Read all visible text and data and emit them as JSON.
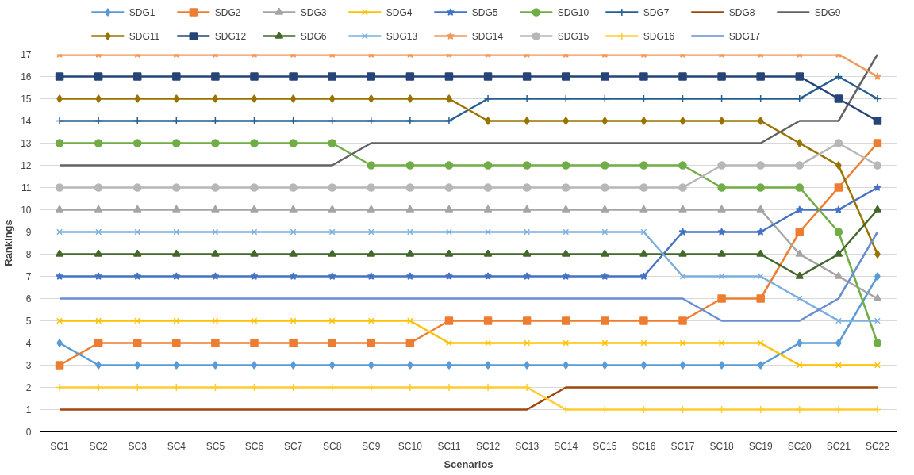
{
  "chart_data": {
    "type": "line",
    "xlabel": "Scenarios",
    "ylabel": "Rankings",
    "categories": [
      "SC1",
      "SC2",
      "SC3",
      "SC4",
      "SC5",
      "SC6",
      "SC7",
      "SC8",
      "SC9",
      "SC10",
      "SC11",
      "SC12",
      "SC13",
      "SC14",
      "SC15",
      "SC16",
      "SC17",
      "SC18",
      "SC19",
      "SC20",
      "SC21",
      "SC22"
    ],
    "ylim": [
      0,
      17
    ],
    "yticks": [
      0,
      1,
      2,
      3,
      4,
      5,
      6,
      7,
      8,
      9,
      10,
      11,
      12,
      13,
      14,
      15,
      16,
      17
    ],
    "grid": "y",
    "legend": "top",
    "series": [
      {
        "name": "SDG1",
        "color": "#5b9bd5",
        "marker": "diamond",
        "values": [
          4,
          3,
          3,
          3,
          3,
          3,
          3,
          3,
          3,
          3,
          3,
          3,
          3,
          3,
          3,
          3,
          3,
          3,
          3,
          4,
          4,
          7
        ]
      },
      {
        "name": "SDG2",
        "color": "#ed7d31",
        "marker": "square",
        "values": [
          3,
          4,
          4,
          4,
          4,
          4,
          4,
          4,
          4,
          4,
          5,
          5,
          5,
          5,
          5,
          5,
          5,
          6,
          6,
          9,
          11,
          13
        ]
      },
      {
        "name": "SDG3",
        "color": "#a5a5a5",
        "marker": "triangle",
        "values": [
          10,
          10,
          10,
          10,
          10,
          10,
          10,
          10,
          10,
          10,
          10,
          10,
          10,
          10,
          10,
          10,
          10,
          10,
          10,
          8,
          7,
          6
        ]
      },
      {
        "name": "SDG4",
        "color": "#ffc000",
        "marker": "x",
        "values": [
          5,
          5,
          5,
          5,
          5,
          5,
          5,
          5,
          5,
          5,
          4,
          4,
          4,
          4,
          4,
          4,
          4,
          4,
          4,
          3,
          3,
          3
        ]
      },
      {
        "name": "SDG5",
        "color": "#4472c4",
        "marker": "star",
        "values": [
          7,
          7,
          7,
          7,
          7,
          7,
          7,
          7,
          7,
          7,
          7,
          7,
          7,
          7,
          7,
          7,
          9,
          9,
          9,
          10,
          10,
          11
        ]
      },
      {
        "name": "SDG10",
        "color": "#70ad47",
        "marker": "circle",
        "values": [
          13,
          13,
          13,
          13,
          13,
          13,
          13,
          13,
          12,
          12,
          12,
          12,
          12,
          12,
          12,
          12,
          12,
          11,
          11,
          11,
          9,
          4
        ]
      },
      {
        "name": "SDG7",
        "color": "#255e91",
        "marker": "cross",
        "values": [
          14,
          14,
          14,
          14,
          14,
          14,
          14,
          14,
          14,
          14,
          14,
          15,
          15,
          15,
          15,
          15,
          15,
          15,
          15,
          15,
          16,
          15
        ]
      },
      {
        "name": "SDG8",
        "color": "#9e480e",
        "marker": "none",
        "values": [
          1,
          1,
          1,
          1,
          1,
          1,
          1,
          1,
          1,
          1,
          1,
          1,
          1,
          2,
          2,
          2,
          2,
          2,
          2,
          2,
          2,
          2
        ]
      },
      {
        "name": "SDG9",
        "color": "#636363",
        "marker": "none",
        "values": [
          12,
          12,
          12,
          12,
          12,
          12,
          12,
          12,
          13,
          13,
          13,
          13,
          13,
          13,
          13,
          13,
          13,
          13,
          13,
          14,
          14,
          17
        ]
      },
      {
        "name": "SDG11",
        "color": "#997300",
        "marker": "diamond",
        "values": [
          15,
          15,
          15,
          15,
          15,
          15,
          15,
          15,
          15,
          15,
          15,
          14,
          14,
          14,
          14,
          14,
          14,
          14,
          14,
          13,
          12,
          8
        ]
      },
      {
        "name": "SDG12",
        "color": "#264478",
        "marker": "square",
        "values": [
          16,
          16,
          16,
          16,
          16,
          16,
          16,
          16,
          16,
          16,
          16,
          16,
          16,
          16,
          16,
          16,
          16,
          16,
          16,
          16,
          15,
          14
        ]
      },
      {
        "name": "SDG6",
        "color": "#43682b",
        "marker": "triangle",
        "values": [
          8,
          8,
          8,
          8,
          8,
          8,
          8,
          8,
          8,
          8,
          8,
          8,
          8,
          8,
          8,
          8,
          8,
          8,
          8,
          7,
          8,
          10
        ]
      },
      {
        "name": "SDG13",
        "color": "#7cafdd",
        "marker": "x",
        "values": [
          9,
          9,
          9,
          9,
          9,
          9,
          9,
          9,
          9,
          9,
          9,
          9,
          9,
          9,
          9,
          9,
          7,
          7,
          7,
          6,
          5,
          5
        ]
      },
      {
        "name": "SDG14",
        "color": "#f1975a",
        "marker": "star",
        "values": [
          17,
          17,
          17,
          17,
          17,
          17,
          17,
          17,
          17,
          17,
          17,
          17,
          17,
          17,
          17,
          17,
          17,
          17,
          17,
          17,
          17,
          16
        ]
      },
      {
        "name": "SDG15",
        "color": "#b7b7b7",
        "marker": "circle",
        "values": [
          11,
          11,
          11,
          11,
          11,
          11,
          11,
          11,
          11,
          11,
          11,
          11,
          11,
          11,
          11,
          11,
          11,
          12,
          12,
          12,
          13,
          12
        ]
      },
      {
        "name": "SDG16",
        "color": "#ffcd33",
        "marker": "cross",
        "values": [
          2,
          2,
          2,
          2,
          2,
          2,
          2,
          2,
          2,
          2,
          2,
          2,
          2,
          1,
          1,
          1,
          1,
          1,
          1,
          1,
          1,
          1
        ]
      },
      {
        "name": "SDG17",
        "color": "#698ed0",
        "marker": "none",
        "values": [
          6,
          6,
          6,
          6,
          6,
          6,
          6,
          6,
          6,
          6,
          6,
          6,
          6,
          6,
          6,
          6,
          6,
          5,
          5,
          5,
          6,
          9
        ]
      }
    ]
  }
}
